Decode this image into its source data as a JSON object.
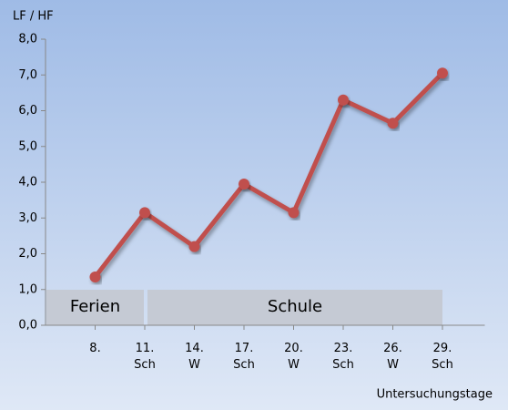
{
  "chart_data": {
    "type": "line",
    "y_label": "LF / HF",
    "x_label": "Untersuchungstage",
    "categories": [
      "8.",
      "11.\nSch",
      "14.\nW",
      "17.\nSch",
      "20.\nW",
      "23.\nSch",
      "26.\nW",
      "29.\nSch"
    ],
    "series": [
      {
        "name": "LF / HF",
        "color": "#c0504d",
        "values": [
          1.35,
          3.15,
          2.2,
          3.95,
          3.15,
          6.3,
          5.65,
          7.05
        ]
      }
    ],
    "ylim": [
      0,
      8
    ],
    "yticks": [
      {
        "value": 0,
        "label": "0,0"
      },
      {
        "value": 1,
        "label": "1,0"
      },
      {
        "value": 2,
        "label": "2,0"
      },
      {
        "value": 3,
        "label": "3,0"
      },
      {
        "value": 4,
        "label": "4,0"
      },
      {
        "value": 5,
        "label": "5,0"
      },
      {
        "value": 6,
        "label": "6,0"
      },
      {
        "value": 7,
        "label": "7,0"
      },
      {
        "value": 8,
        "label": "8,0"
      }
    ],
    "annotations": [
      {
        "text": "Ferien"
      },
      {
        "text": "Schule"
      }
    ]
  }
}
